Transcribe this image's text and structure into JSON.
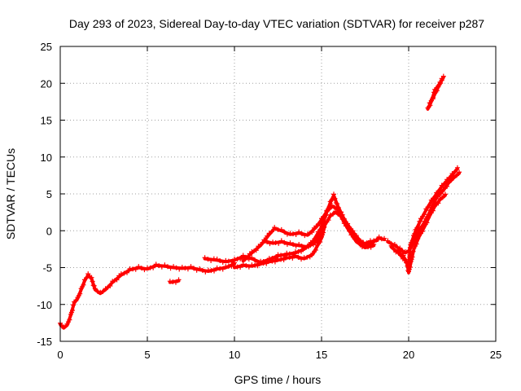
{
  "chart_data": {
    "type": "scatter",
    "title": "Day 293 of 2023, Sidereal Day-to-day VTEC variation (SDTVAR) for receiver p287",
    "xlabel": "GPS time / hours",
    "ylabel": "SDTVAR / TECUs",
    "xlim": [
      0,
      25
    ],
    "ylim": [
      -15,
      25
    ],
    "xticks": [
      "0",
      "5",
      "10",
      "15",
      "20",
      "25"
    ],
    "yticks": [
      "-15",
      "-10",
      "-5",
      "0",
      "5",
      "10",
      "15",
      "20",
      "25"
    ],
    "grid": true,
    "marker_color": "#ff0000",
    "series": [
      {
        "points": [
          [
            0.0,
            -12.7
          ],
          [
            0.2,
            -13.2
          ],
          [
            0.4,
            -12.8
          ],
          [
            0.6,
            -11.5
          ],
          [
            0.8,
            -9.8
          ],
          [
            1.0,
            -9.2
          ],
          [
            1.2,
            -8.0
          ],
          [
            1.4,
            -6.8
          ],
          [
            1.6,
            -6.0
          ],
          [
            1.8,
            -6.5
          ],
          [
            2.0,
            -8.0
          ],
          [
            2.3,
            -8.5
          ],
          [
            2.6,
            -8.0
          ],
          [
            3.0,
            -7.0
          ],
          [
            3.5,
            -6.0
          ],
          [
            4.0,
            -5.3
          ],
          [
            4.5,
            -5.0
          ],
          [
            5.0,
            -5.2
          ],
          [
            5.5,
            -4.7
          ],
          [
            6.0,
            -4.8
          ],
          [
            6.5,
            -5.0
          ],
          [
            7.0,
            -5.1
          ],
          [
            7.5,
            -5.0
          ],
          [
            8.0,
            -5.3
          ],
          [
            8.5,
            -5.5
          ],
          [
            9.0,
            -5.2
          ],
          [
            9.5,
            -5.0
          ],
          [
            10.0,
            -4.5
          ]
        ]
      },
      {
        "points": [
          [
            6.3,
            -7.0
          ],
          [
            6.8,
            -6.8
          ]
        ]
      },
      {
        "points": [
          [
            8.3,
            -3.8
          ],
          [
            9.0,
            -4.0
          ],
          [
            9.5,
            -4.2
          ],
          [
            10.0,
            -4.0
          ],
          [
            10.5,
            -3.5
          ],
          [
            11.0,
            -3.8
          ],
          [
            11.5,
            -4.3
          ],
          [
            12.0,
            -3.9
          ],
          [
            12.5,
            -3.4
          ],
          [
            13.0,
            -3.2
          ],
          [
            13.5,
            -3.0
          ],
          [
            14.0,
            -2.5
          ],
          [
            14.5,
            -1.5
          ],
          [
            15.0,
            0.5
          ],
          [
            15.3,
            2.5
          ],
          [
            15.5,
            3.8
          ],
          [
            15.7,
            4.8
          ],
          [
            15.9,
            3.5
          ],
          [
            16.2,
            2.0
          ],
          [
            16.5,
            0.8
          ],
          [
            17.0,
            -0.8
          ],
          [
            17.5,
            -2.0
          ],
          [
            18.0,
            -1.5
          ],
          [
            18.3,
            -1.0
          ],
          [
            18.6,
            -1.2
          ]
        ]
      },
      {
        "points": [
          [
            10.0,
            -5.0
          ],
          [
            10.5,
            -4.7
          ],
          [
            11.0,
            -4.8
          ],
          [
            11.5,
            -4.5
          ],
          [
            12.0,
            -4.2
          ],
          [
            12.5,
            -4.0
          ],
          [
            13.0,
            -3.7
          ],
          [
            13.5,
            -3.5
          ],
          [
            14.0,
            -3.8
          ],
          [
            14.5,
            -3.2
          ],
          [
            15.0,
            -1.0
          ],
          [
            15.2,
            0.8
          ],
          [
            15.5,
            2.0
          ],
          [
            15.8,
            2.5
          ],
          [
            16.1,
            2.0
          ],
          [
            16.5,
            0.3
          ],
          [
            17.0,
            -1.5
          ],
          [
            17.5,
            -2.3
          ],
          [
            18.0,
            -2.0
          ]
        ]
      },
      {
        "points": [
          [
            10.5,
            -4.1
          ],
          [
            11.0,
            -3.0
          ],
          [
            11.5,
            -2.0
          ],
          [
            12.0,
            -0.5
          ],
          [
            12.3,
            0.3
          ],
          [
            12.7,
            0.0
          ],
          [
            13.2,
            -0.5
          ],
          [
            13.7,
            -0.3
          ],
          [
            14.2,
            -0.6
          ],
          [
            14.7,
            0.5
          ],
          [
            15.0,
            1.5
          ],
          [
            15.3,
            2.6
          ],
          [
            15.6,
            3.3
          ],
          [
            15.9,
            3.0
          ],
          [
            16.2,
            1.6
          ],
          [
            16.6,
            0.0
          ],
          [
            17.0,
            -1.2
          ],
          [
            17.4,
            -1.8
          ],
          [
            17.8,
            -1.5
          ],
          [
            18.2,
            -1.3
          ]
        ]
      },
      {
        "points": [
          [
            11.7,
            -1.4
          ],
          [
            12.2,
            -1.7
          ],
          [
            12.7,
            -1.5
          ],
          [
            13.2,
            -1.8
          ],
          [
            13.7,
            -2.0
          ],
          [
            14.2,
            -2.2
          ],
          [
            14.7,
            -1.5
          ],
          [
            15.0,
            -0.2
          ],
          [
            15.2,
            1.0
          ]
        ]
      },
      {
        "points": [
          [
            18.8,
            -1.5
          ],
          [
            19.2,
            -2.0
          ],
          [
            19.5,
            -2.5
          ],
          [
            19.8,
            -3.0
          ],
          [
            20.0,
            -2.8
          ],
          [
            20.3,
            -1.5
          ],
          [
            20.6,
            0.0
          ],
          [
            21.0,
            1.5
          ],
          [
            21.3,
            3.0
          ],
          [
            21.6,
            4.5
          ],
          [
            22.0,
            5.5
          ],
          [
            22.3,
            6.5
          ],
          [
            22.6,
            7.2
          ],
          [
            22.9,
            7.8
          ]
        ]
      },
      {
        "points": [
          [
            19.0,
            -2.2
          ],
          [
            19.4,
            -3.0
          ],
          [
            19.8,
            -4.0
          ],
          [
            20.0,
            -5.0
          ],
          [
            20.1,
            -2.0
          ],
          [
            20.4,
            0.0
          ],
          [
            20.7,
            1.5
          ],
          [
            21.0,
            2.8
          ],
          [
            21.3,
            4.0
          ],
          [
            21.6,
            5.0
          ],
          [
            21.9,
            6.0
          ],
          [
            22.2,
            6.8
          ],
          [
            22.5,
            7.6
          ],
          [
            22.8,
            8.4
          ]
        ]
      },
      {
        "points": [
          [
            19.4,
            -2.8
          ],
          [
            19.7,
            -3.5
          ],
          [
            19.9,
            -4.3
          ],
          [
            20.0,
            -5.7
          ],
          [
            20.3,
            -2.5
          ],
          [
            20.6,
            -0.8
          ],
          [
            20.9,
            0.5
          ],
          [
            21.2,
            2.0
          ],
          [
            21.5,
            3.3
          ],
          [
            21.8,
            4.2
          ],
          [
            22.1,
            4.8
          ]
        ]
      },
      {
        "points": [
          [
            21.1,
            16.5
          ],
          [
            21.3,
            17.5
          ],
          [
            21.5,
            19.0
          ],
          [
            21.8,
            20.0
          ],
          [
            22.0,
            20.8
          ]
        ]
      },
      {
        "points": [
          [
            21.2,
            17.2
          ],
          [
            21.5,
            18.5
          ],
          [
            21.7,
            19.5
          ],
          [
            21.9,
            20.5
          ]
        ]
      }
    ]
  }
}
